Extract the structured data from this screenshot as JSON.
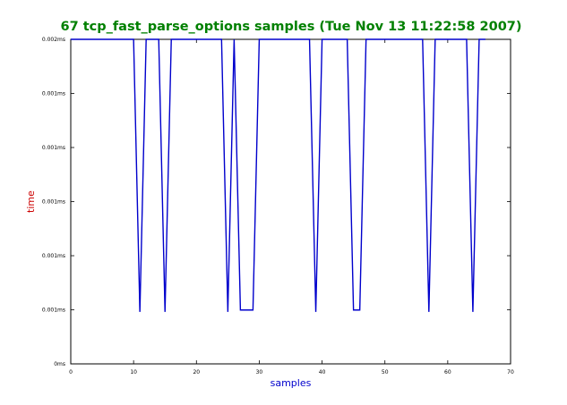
{
  "chart_data": {
    "type": "line",
    "title": "67 tcp_fast_parse_options samples (Tue Nov 13 11:22:58 2007)",
    "xlabel": "samples",
    "ylabel": "time",
    "xlim": [
      0,
      70
    ],
    "ylim": [
      0,
      1
    ],
    "x_ticks": [
      0,
      10,
      20,
      30,
      40,
      50,
      60,
      70
    ],
    "x_tick_labels": [
      "0",
      "10",
      "20",
      "30",
      "40",
      "50",
      "60",
      "70"
    ],
    "y_ticks": [
      0,
      0.1667,
      0.3333,
      0.5,
      0.6667,
      0.8333,
      1
    ],
    "y_tick_labels": [
      "0ms",
      "0.001ms",
      "0.001ms",
      "0.001ms",
      "0.001ms",
      "0.001ms",
      "0.002ms"
    ],
    "grid": false,
    "legend": "none",
    "series": [
      {
        "color": "#0000cc",
        "x": [
          0,
          1,
          2,
          3,
          4,
          5,
          6,
          7,
          8,
          9,
          10,
          11,
          12,
          13,
          14,
          15,
          16,
          17,
          18,
          19,
          20,
          21,
          22,
          23,
          24,
          25,
          26,
          27,
          28,
          29,
          30,
          31,
          32,
          33,
          34,
          35,
          36,
          37,
          38,
          39,
          40,
          41,
          42,
          43,
          44,
          45,
          46,
          47,
          48,
          49,
          50,
          51,
          52,
          53,
          54,
          55,
          56,
          57,
          58,
          59,
          60,
          61,
          62,
          63,
          64,
          65,
          66
        ],
        "values": [
          1,
          1,
          1,
          1,
          1,
          1,
          1,
          1,
          1,
          1,
          1,
          0.16,
          1,
          1,
          1,
          0.16,
          1,
          1,
          1,
          1,
          1,
          1,
          1,
          1,
          1,
          0.16,
          1,
          0.166,
          0.166,
          0.166,
          1,
          1,
          1,
          1,
          1,
          1,
          1,
          1,
          1,
          0.16,
          1,
          1,
          1,
          1,
          1,
          0.166,
          0.166,
          1,
          1,
          1,
          1,
          1,
          1,
          1,
          1,
          1,
          1,
          0.16,
          1,
          1,
          1,
          1,
          1,
          1,
          0.16,
          1,
          1
        ]
      }
    ],
    "colors": {
      "title": "#008000",
      "xlabel": "#0000cc",
      "ylabel": "#cc0000",
      "axes": "#000000"
    }
  }
}
